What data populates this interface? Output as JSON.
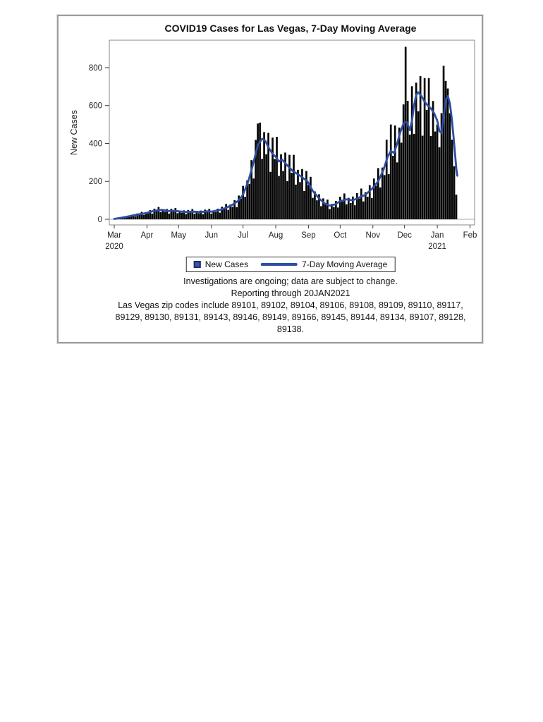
{
  "figure": {
    "title": "COVID19 Cases for Las Vegas, 7-Day Moving Average",
    "y_axis_label": "New Cases",
    "legend": [
      {
        "swatch": "square",
        "label": "New Cases"
      },
      {
        "swatch": "line",
        "label": "7-Day Moving Average"
      }
    ],
    "footnotes": [
      "Investigations are ongoing; data are subject to change.",
      "Reporting through 20JAN2021",
      "Las Vegas zip codes include 89101, 89102, 89104, 89106, 89108, 89109, 89110, 89117,",
      "89129, 89130, 89131, 89143, 89146, 89149, 89166, 89145, 89144, 89134, 89107, 89128,",
      "89138."
    ],
    "colors": {
      "bar": "#050505",
      "line": "#2e4ea3",
      "legend_square_fill": "#3f57a7",
      "legend_square_border": "#1e2c74",
      "frame": "#8a8a8a",
      "tick": "#3c3c3c",
      "zero_line": "#aaaaaa",
      "text": "#121212"
    }
  },
  "chart_data": {
    "type": "bar+line",
    "title": "COVID19 Cases for Las Vegas, 7-Day Moving Average",
    "xlabel": "",
    "ylabel": "New Cases",
    "ylim": [
      0,
      945
    ],
    "y_ticks": [
      0,
      200,
      400,
      600,
      800
    ],
    "x_unit": "days since 01MAR2020",
    "x_range_days": [
      0,
      337
    ],
    "data_end_label": "20JAN2021",
    "grid": false,
    "legend_position": "bottom",
    "x_ticks": [
      {
        "label": "Mar",
        "sub": "2020",
        "day": 0
      },
      {
        "label": "Apr",
        "day": 31
      },
      {
        "label": "May",
        "day": 61
      },
      {
        "label": "Jun",
        "day": 92
      },
      {
        "label": "Jul",
        "day": 122
      },
      {
        "label": "Aug",
        "day": 153
      },
      {
        "label": "Sep",
        "day": 184
      },
      {
        "label": "Oct",
        "day": 214
      },
      {
        "label": "Nov",
        "day": 245
      },
      {
        "label": "Dec",
        "day": 275
      },
      {
        "label": "Jan",
        "sub": "2021",
        "day": 306
      },
      {
        "label": "Feb",
        "day": 337
      }
    ],
    "series": [
      {
        "name": "New Cases",
        "type": "bar",
        "color": "#050505",
        "start_day": 0,
        "step_days": 2,
        "values": [
          2,
          4,
          4,
          9,
          10,
          16,
          11,
          18,
          15,
          25,
          16,
          31,
          26,
          39,
          23,
          36,
          31,
          48,
          30,
          56,
          45,
          65,
          38,
          54,
          40,
          54,
          30,
          55,
          43,
          59,
          32,
          46,
          34,
          47,
          27,
          49,
          37,
          54,
          29,
          43,
          32,
          46,
          27,
          51,
          40,
          55,
          30,
          46,
          38,
          56,
          35,
          66,
          54,
          81,
          50,
          78,
          66,
          101,
          64,
          125,
          109,
          176,
          119,
          205,
          187,
          312,
          215,
          419,
          505,
          510,
          319,
          460,
          343,
          456,
          250,
          431,
          318,
          435,
          229,
          343,
          255,
          352,
          201,
          340,
          245,
          340,
          183,
          261,
          196,
          265,
          149,
          255,
          181,
          224,
          113,
          147,
          100,
          132,
          69,
          110,
          78,
          104,
          54,
          81,
          65,
          97,
          62,
          119,
          93,
          136,
          79,
          113,
          86,
          120,
          74,
          138,
          109,
          162,
          94,
          143,
          119,
          180,
          112,
          215,
          177,
          270,
          168,
          273,
          233,
          420,
          238,
          500,
          335,
          495,
          300,
          484,
          404,
          606,
          910,
          625,
          447,
          702,
          450,
          721,
          570,
          755,
          441,
          745,
          577,
          745,
          439,
          624,
          463,
          500,
          380,
          560,
          810,
          730,
          690,
          560,
          420,
          280,
          130
        ]
      },
      {
        "name": "7-Day Moving Average",
        "type": "line",
        "color": "#2e4ea3",
        "points": [
          [
            0,
            2
          ],
          [
            7,
            8
          ],
          [
            14,
            16
          ],
          [
            21,
            24
          ],
          [
            28,
            30
          ],
          [
            31,
            34
          ],
          [
            38,
            45
          ],
          [
            45,
            50
          ],
          [
            49,
            46
          ],
          [
            52,
            43
          ],
          [
            56,
            45
          ],
          [
            61,
            42
          ],
          [
            68,
            38
          ],
          [
            75,
            40
          ],
          [
            82,
            38
          ],
          [
            88,
            42
          ],
          [
            92,
            40
          ],
          [
            99,
            48
          ],
          [
            106,
            60
          ],
          [
            113,
            80
          ],
          [
            118,
            100
          ],
          [
            122,
            130
          ],
          [
            127,
            200
          ],
          [
            131,
            280
          ],
          [
            136,
            390
          ],
          [
            140,
            425
          ],
          [
            143,
            415
          ],
          [
            146,
            380
          ],
          [
            150,
            345
          ],
          [
            153,
            330
          ],
          [
            156,
            305
          ],
          [
            159,
            315
          ],
          [
            163,
            290
          ],
          [
            169,
            255
          ],
          [
            176,
            230
          ],
          [
            183,
            200
          ],
          [
            188,
            150
          ],
          [
            194,
            110
          ],
          [
            199,
            85
          ],
          [
            204,
            72
          ],
          [
            209,
            78
          ],
          [
            214,
            95
          ],
          [
            220,
            105
          ],
          [
            226,
            100
          ],
          [
            232,
            115
          ],
          [
            238,
            130
          ],
          [
            244,
            160
          ],
          [
            250,
            200
          ],
          [
            255,
            260
          ],
          [
            259,
            330
          ],
          [
            262,
            360
          ],
          [
            265,
            350
          ],
          [
            268,
            400
          ],
          [
            271,
            460
          ],
          [
            274,
            505
          ],
          [
            277,
            515
          ],
          [
            280,
            470
          ],
          [
            282,
            520
          ],
          [
            284,
            600
          ],
          [
            286,
            655
          ],
          [
            288,
            670
          ],
          [
            291,
            650
          ],
          [
            294,
            620
          ],
          [
            297,
            600
          ],
          [
            300,
            585
          ],
          [
            303,
            560
          ],
          [
            306,
            520
          ],
          [
            308,
            465
          ],
          [
            310,
            455
          ],
          [
            312,
            540
          ],
          [
            314,
            630
          ],
          [
            316,
            650
          ],
          [
            318,
            610
          ],
          [
            320,
            520
          ],
          [
            322,
            400
          ],
          [
            324,
            270
          ],
          [
            325,
            230
          ]
        ]
      }
    ]
  }
}
